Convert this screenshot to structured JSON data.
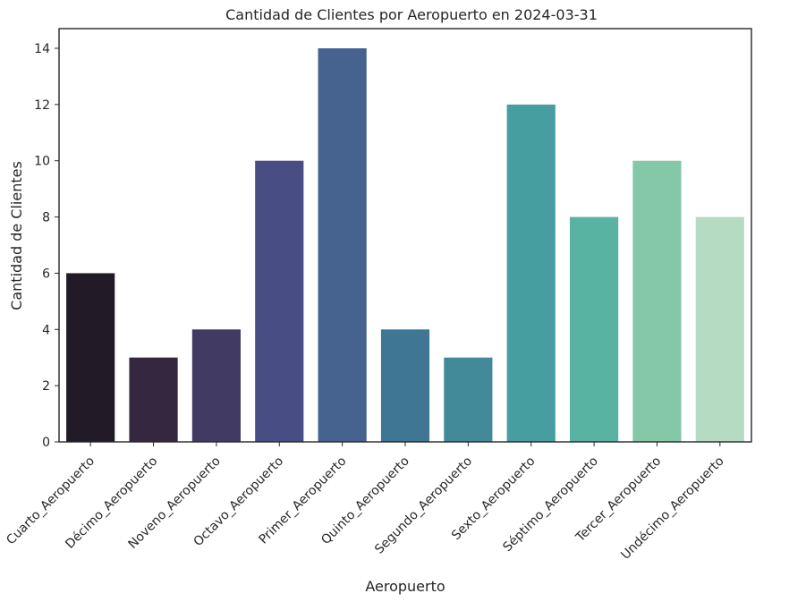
{
  "chart_data": {
    "type": "bar",
    "title": "Cantidad de Clientes por Aeropuerto en 2024-03-31",
    "xlabel": "Aeropuerto",
    "ylabel": "Cantidad de Clientes",
    "categories": [
      "Cuarto_Aeropuerto",
      "Décimo_Aeropuerto",
      "Noveno_Aeropuerto",
      "Octavo_Aeropuerto",
      "Primer_Aeropuerto",
      "Quinto_Aeropuerto",
      "Segundo_Aeropuerto",
      "Sexto_Aeropuerto",
      "Séptimo_Aeropuerto",
      "Tercer_Aeropuerto",
      "Undécimo_Aeropuerto"
    ],
    "values": [
      6,
      3,
      4,
      10,
      14,
      4,
      3,
      12,
      8,
      10,
      8
    ],
    "colors": [
      "#231a28",
      "#35273f",
      "#413a62",
      "#484d83",
      "#45638e",
      "#3f7694",
      "#42899a",
      "#469ea0",
      "#58b3a2",
      "#84c8a8",
      "#b5dcc3"
    ],
    "ylim": [
      0,
      14.7
    ],
    "yticks": [
      0,
      2,
      4,
      6,
      8,
      10,
      12,
      14
    ],
    "grid": false,
    "legend": "none"
  }
}
